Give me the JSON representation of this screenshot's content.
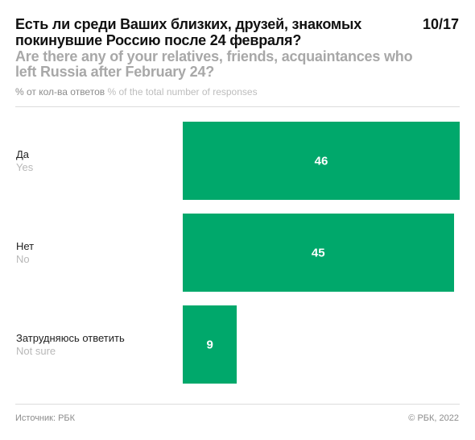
{
  "header": {
    "title_ru": "Есть ли среди Ваших близких, друзей, знакомых покинувшие Россию после 24 февраля?",
    "title_en": "Are there any of your relatives, friends, acquaintances who left Russia after February 24?",
    "counter": "10/17",
    "unit_ru": "% от кол-ва ответов",
    "unit_en": "% of the total number of responses"
  },
  "chart_data": {
    "type": "bar",
    "orientation": "horizontal",
    "categories": [
      {
        "ru": "Да",
        "en": "Yes"
      },
      {
        "ru": "Нет",
        "en": "No"
      },
      {
        "ru": "Затрудняюсь ответить",
        "en": "Not sure"
      }
    ],
    "values": [
      46,
      45,
      9
    ],
    "value_labels": [
      "46",
      "45",
      "9"
    ],
    "xlim": [
      0,
      46
    ],
    "grid": false,
    "legend": "none",
    "colors": {
      "bar": "#00a86b"
    }
  },
  "footer": {
    "source": "Источник: РБК",
    "copyright": "© РБК, 2022"
  }
}
